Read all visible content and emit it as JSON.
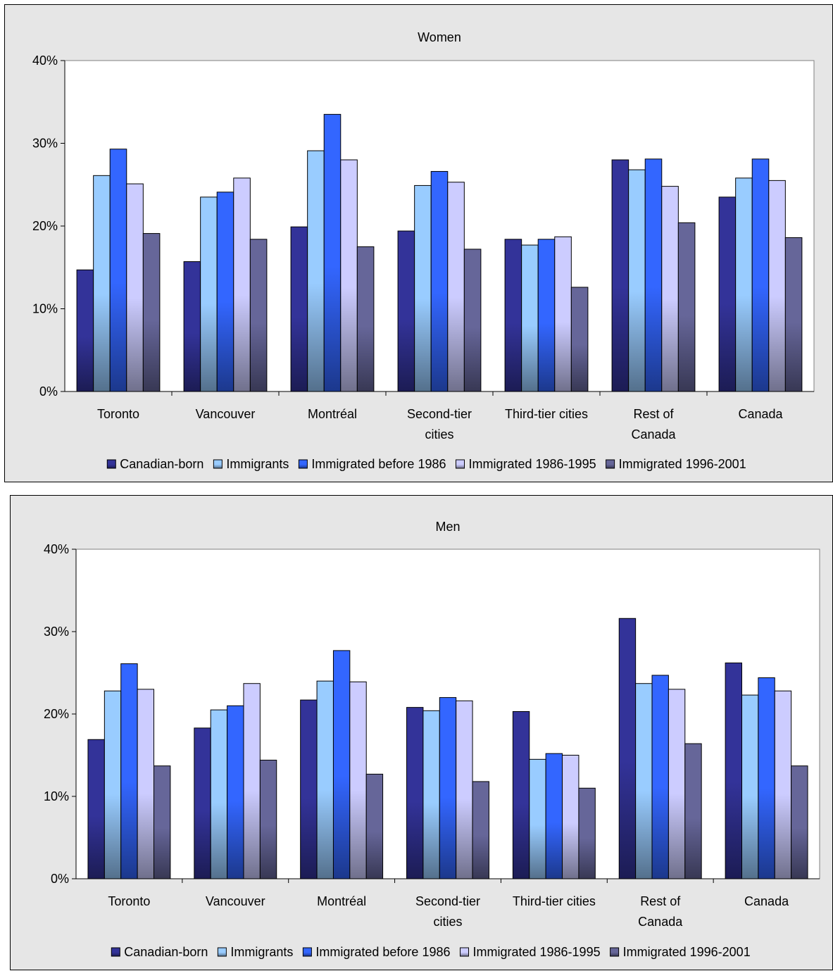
{
  "colors": {
    "canadian_born": "#333399",
    "immigrants": "#99ccff",
    "before_1986": "#3366ff",
    "imm_1986_1995": "#ccccff",
    "imm_1996_2001": "#666699",
    "panel_bg": "#e6e6e6",
    "plot_bg": "#ffffff"
  },
  "chart_data": [
    {
      "type": "bar",
      "title": "Women",
      "xlabel": "",
      "ylabel": "",
      "ylim": [
        0,
        40
      ],
      "yticks": [
        "0%",
        "10%",
        "20%",
        "30%",
        "40%"
      ],
      "categories": [
        "Toronto",
        "Vancouver",
        "Montréal",
        "Second-tier cities",
        "Third-tier cities",
        "Rest of Canada",
        "Canada"
      ],
      "category_lines": [
        [
          "Toronto"
        ],
        [
          "Vancouver"
        ],
        [
          "Montréal"
        ],
        [
          "Second-tier",
          "cities"
        ],
        [
          "Third-tier cities"
        ],
        [
          "Rest of",
          "Canada"
        ],
        [
          "Canada"
        ]
      ],
      "legend_position": "bottom",
      "series": [
        {
          "name": "Canadian-born",
          "values": [
            14.7,
            15.7,
            19.9,
            19.4,
            18.4,
            28.0,
            23.5
          ]
        },
        {
          "name": "Immigrants",
          "values": [
            26.1,
            23.5,
            29.1,
            24.9,
            17.7,
            26.8,
            25.8
          ]
        },
        {
          "name": "Immigrated before 1986",
          "values": [
            29.3,
            24.1,
            33.5,
            26.6,
            18.4,
            28.1,
            28.1
          ]
        },
        {
          "name": "Immigrated 1986-1995",
          "values": [
            25.1,
            25.8,
            28.0,
            25.3,
            18.7,
            24.8,
            25.5
          ]
        },
        {
          "name": "Immigrated 1996-2001",
          "values": [
            19.1,
            18.4,
            17.5,
            17.2,
            12.6,
            20.4,
            18.6
          ]
        }
      ]
    },
    {
      "type": "bar",
      "title": "Men",
      "xlabel": "",
      "ylabel": "",
      "ylim": [
        0,
        40
      ],
      "yticks": [
        "0%",
        "10%",
        "20%",
        "30%",
        "40%"
      ],
      "categories": [
        "Toronto",
        "Vancouver",
        "Montréal",
        "Second-tier cities",
        "Third-tier cities",
        "Rest of Canada",
        "Canada"
      ],
      "category_lines": [
        [
          "Toronto"
        ],
        [
          "Vancouver"
        ],
        [
          "Montréal"
        ],
        [
          "Second-tier",
          "cities"
        ],
        [
          "Third-tier cities"
        ],
        [
          "Rest of",
          "Canada"
        ],
        [
          "Canada"
        ]
      ],
      "legend_position": "bottom",
      "series": [
        {
          "name": "Canadian-born",
          "values": [
            16.9,
            18.3,
            21.7,
            20.8,
            20.3,
            31.6,
            26.2
          ]
        },
        {
          "name": "Immigrants",
          "values": [
            22.8,
            20.5,
            24.0,
            20.4,
            14.5,
            23.7,
            22.3
          ]
        },
        {
          "name": "Immigrated before 1986",
          "values": [
            26.1,
            21.0,
            27.7,
            22.0,
            15.2,
            24.7,
            24.4
          ]
        },
        {
          "name": "Immigrated 1986-1995",
          "values": [
            23.0,
            23.7,
            23.9,
            21.6,
            15.0,
            23.0,
            22.8
          ]
        },
        {
          "name": "Immigrated 1996-2001",
          "values": [
            13.7,
            14.4,
            12.7,
            11.8,
            11.0,
            16.4,
            13.7
          ]
        }
      ]
    }
  ]
}
